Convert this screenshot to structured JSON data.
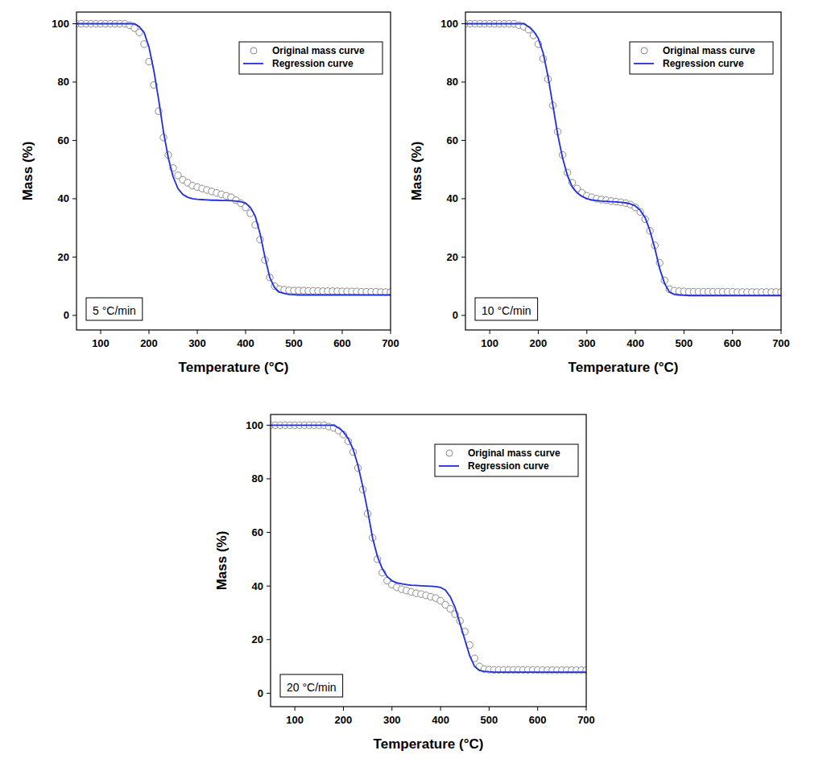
{
  "chart_data": [
    {
      "type": "line",
      "annotation": "5 °C/min",
      "x_label": "Temperature (°C)",
      "y_label": "Mass (%)",
      "legend": "upper right",
      "x": [
        50,
        60,
        70,
        80,
        90,
        100,
        110,
        120,
        130,
        140,
        150,
        160,
        170,
        180,
        190,
        200,
        210,
        220,
        230,
        240,
        250,
        260,
        270,
        280,
        290,
        300,
        310,
        320,
        330,
        340,
        350,
        360,
        370,
        380,
        390,
        400,
        410,
        420,
        430,
        440,
        450,
        460,
        470,
        480,
        490,
        500,
        510,
        520,
        530,
        540,
        550,
        560,
        570,
        580,
        590,
        600,
        610,
        620,
        630,
        640,
        650,
        660,
        670,
        680,
        690,
        700
      ],
      "series": [
        {
          "name": "Original mass curve",
          "type": "scatter",
          "marker": "circle",
          "color": "#8a8a8a",
          "values": [
            100,
            100,
            100,
            100,
            100,
            100,
            100,
            100,
            100,
            100,
            100,
            99.5,
            98.5,
            97,
            93,
            87,
            79,
            70,
            61,
            55,
            50.5,
            48,
            46.5,
            45.5,
            44.5,
            44,
            43.5,
            43,
            42.5,
            42,
            41.5,
            41,
            40.5,
            39.5,
            38.5,
            37,
            35,
            31,
            26,
            19,
            13,
            10,
            9,
            8.8,
            8.6,
            8.5,
            8.5,
            8.5,
            8.4,
            8.4,
            8.4,
            8.3,
            8.3,
            8.3,
            8.3,
            8.2,
            8.2,
            8.2,
            8.2,
            8.1,
            8.1,
            8.1,
            8.1,
            8.0,
            8.0,
            8.0
          ]
        },
        {
          "name": "Regression curve",
          "type": "line",
          "line_style": "solid",
          "color": "#1f2ee0",
          "values": [
            100,
            100,
            100,
            100,
            100,
            100,
            100,
            100,
            100,
            100,
            100,
            100,
            100,
            99,
            97,
            92,
            84,
            74,
            63,
            54,
            47.5,
            43.5,
            41.5,
            40.5,
            40,
            39.8,
            39.7,
            39.6,
            39.5,
            39.5,
            39.4,
            39.4,
            39.3,
            39.2,
            39,
            38.5,
            37,
            34,
            28,
            20,
            13,
            9.5,
            8,
            7.5,
            7.2,
            7.1,
            7.0,
            7.0,
            7.0,
            7.0,
            7.0,
            7.0,
            7.0,
            7.0,
            7.0,
            7.0,
            7.0,
            7.0,
            7.0,
            7.0,
            7.0,
            7.0,
            7.0,
            7.0,
            7.0,
            7.0
          ]
        }
      ],
      "xlim": [
        50,
        700
      ],
      "xticks": [
        100,
        200,
        300,
        400,
        500,
        600,
        700
      ],
      "ylim": [
        -5,
        104
      ],
      "yticks": [
        0,
        20,
        40,
        60,
        80,
        100
      ],
      "grid": false
    },
    {
      "type": "line",
      "annotation": "10 °C/min",
      "x_label": "Temperature (°C)",
      "y_label": "Mass (%)",
      "legend": "upper right",
      "x": [
        50,
        60,
        70,
        80,
        90,
        100,
        110,
        120,
        130,
        140,
        150,
        160,
        170,
        180,
        190,
        200,
        210,
        220,
        230,
        240,
        250,
        260,
        270,
        280,
        290,
        300,
        310,
        320,
        330,
        340,
        350,
        360,
        370,
        380,
        390,
        400,
        410,
        420,
        430,
        440,
        450,
        460,
        470,
        480,
        490,
        500,
        510,
        520,
        530,
        540,
        550,
        560,
        570,
        580,
        590,
        600,
        610,
        620,
        630,
        640,
        650,
        660,
        670,
        680,
        690,
        700
      ],
      "series": [
        {
          "name": "Original mass curve",
          "type": "scatter",
          "marker": "circle",
          "color": "#8a8a8a",
          "values": [
            100,
            100,
            100,
            100,
            100,
            100,
            100,
            100,
            100,
            100,
            100,
            99.5,
            99,
            98,
            96,
            93,
            88,
            81,
            72,
            63,
            55,
            49,
            45.5,
            43.5,
            42,
            41,
            40.5,
            40,
            39.7,
            39.5,
            39.2,
            39,
            38.8,
            38.5,
            38,
            37,
            35.5,
            33,
            29,
            24,
            18,
            12,
            9,
            8.5,
            8.3,
            8.2,
            8.1,
            8.1,
            8.1,
            8.1,
            8.1,
            8.1,
            8.1,
            8.1,
            8.1,
            8.1,
            8.0,
            8.0,
            8.0,
            8.0,
            8.0,
            8.0,
            8.0,
            8.0,
            8.0,
            8.0
          ]
        },
        {
          "name": "Regression curve",
          "type": "line",
          "line_style": "solid",
          "color": "#1f2ee0",
          "values": [
            100,
            100,
            100,
            100,
            100,
            100,
            100,
            100,
            100,
            100,
            100,
            100,
            100,
            99,
            97.5,
            95,
            90,
            82,
            72,
            62,
            54,
            48,
            44,
            42,
            40.8,
            40,
            39.6,
            39.4,
            39.2,
            39.1,
            39,
            38.9,
            38.8,
            38.6,
            38.2,
            37.5,
            36,
            33.5,
            29,
            23,
            16,
            11,
            8,
            7.2,
            7,
            6.9,
            6.8,
            6.8,
            6.8,
            6.8,
            6.8,
            6.8,
            6.8,
            6.8,
            6.8,
            6.8,
            6.8,
            6.8,
            6.8,
            6.8,
            6.8,
            6.8,
            6.8,
            6.8,
            6.8,
            6.8
          ]
        }
      ],
      "xlim": [
        50,
        700
      ],
      "xticks": [
        100,
        200,
        300,
        400,
        500,
        600,
        700
      ],
      "ylim": [
        -5,
        104
      ],
      "yticks": [
        0,
        20,
        40,
        60,
        80,
        100
      ],
      "grid": false
    },
    {
      "type": "line",
      "annotation": "20 °C/min",
      "x_label": "Temperature (°C)",
      "y_label": "Mass (%)",
      "legend": "upper right",
      "x": [
        50,
        60,
        70,
        80,
        90,
        100,
        110,
        120,
        130,
        140,
        150,
        160,
        170,
        180,
        190,
        200,
        210,
        220,
        230,
        240,
        250,
        260,
        270,
        280,
        290,
        300,
        310,
        320,
        330,
        340,
        350,
        360,
        370,
        380,
        390,
        400,
        410,
        420,
        430,
        440,
        450,
        460,
        470,
        480,
        490,
        500,
        510,
        520,
        530,
        540,
        550,
        560,
        570,
        580,
        590,
        600,
        610,
        620,
        630,
        640,
        650,
        660,
        670,
        680,
        690,
        700
      ],
      "series": [
        {
          "name": "Original mass curve",
          "type": "scatter",
          "marker": "circle",
          "color": "#8a8a8a",
          "values": [
            100,
            100,
            100,
            100,
            100,
            100,
            100,
            100,
            100,
            100,
            100,
            100,
            99.5,
            99,
            98,
            96.5,
            94,
            90,
            84,
            76,
            67,
            58,
            50,
            45,
            42,
            40.5,
            39.5,
            38.8,
            38.3,
            37.8,
            37.3,
            37,
            36.5,
            36,
            35.5,
            34.5,
            33,
            31.5,
            29.5,
            27,
            23,
            18,
            13,
            10,
            9,
            8.8,
            8.7,
            8.7,
            8.7,
            8.7,
            8.7,
            8.7,
            8.7,
            8.7,
            8.7,
            8.7,
            8.6,
            8.6,
            8.6,
            8.6,
            8.6,
            8.6,
            8.6,
            8.6,
            8.6,
            8.6
          ]
        },
        {
          "name": "Regression curve",
          "type": "line",
          "line_style": "solid",
          "color": "#1f2ee0",
          "values": [
            100,
            100,
            100,
            100,
            100,
            100,
            100,
            100,
            100,
            100,
            100,
            100,
            100,
            100,
            99,
            97.5,
            95,
            91,
            85,
            77,
            68,
            58,
            51,
            46.5,
            43.5,
            42,
            41.2,
            40.8,
            40.5,
            40.3,
            40.2,
            40.1,
            40,
            39.9,
            39.8,
            39.5,
            38.5,
            36,
            32,
            26,
            20,
            14,
            10,
            8.5,
            8.2,
            8,
            7.9,
            7.9,
            7.9,
            7.9,
            7.9,
            7.9,
            7.9,
            7.9,
            7.9,
            7.9,
            7.9,
            7.9,
            7.9,
            7.9,
            7.9,
            7.9,
            7.9,
            7.9,
            7.9,
            7.9
          ]
        }
      ],
      "xlim": [
        50,
        700
      ],
      "xticks": [
        100,
        200,
        300,
        400,
        500,
        600,
        700
      ],
      "ylim": [
        -5,
        104
      ],
      "yticks": [
        0,
        20,
        40,
        60,
        80,
        100
      ],
      "grid": false
    }
  ]
}
